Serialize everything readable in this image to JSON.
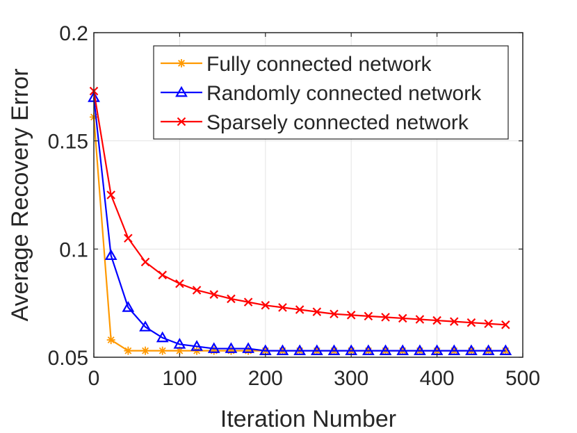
{
  "chart_data": {
    "type": "line",
    "title": "",
    "xlabel": "Iteration Number",
    "ylabel": "Average Recovery Error",
    "xlim": [
      0,
      500
    ],
    "ylim": [
      0.05,
      0.2
    ],
    "xticks": [
      0,
      100,
      200,
      300,
      400,
      500
    ],
    "yticks": [
      0.05,
      0.1,
      0.15,
      0.2
    ],
    "xtick_labels": [
      "0",
      "100",
      "200",
      "300",
      "400",
      "500"
    ],
    "ytick_labels": [
      "0.05",
      "0.1",
      "0.15",
      "0.2"
    ],
    "grid": true,
    "legend_position": "top-right",
    "x": [
      0,
      20,
      40,
      60,
      80,
      100,
      120,
      140,
      160,
      180,
      200,
      220,
      240,
      260,
      280,
      300,
      320,
      340,
      360,
      380,
      400,
      420,
      440,
      460,
      480
    ],
    "series": [
      {
        "name": "Fully connected network",
        "color": "#ff9900",
        "marker": "asterisk",
        "values": [
          0.161,
          0.058,
          0.053,
          0.053,
          0.053,
          0.053,
          0.053,
          0.053,
          0.053,
          0.053,
          0.053,
          0.053,
          0.053,
          0.053,
          0.053,
          0.053,
          0.053,
          0.053,
          0.053,
          0.053,
          0.053,
          0.053,
          0.053,
          0.053,
          0.053
        ]
      },
      {
        "name": "Randomly connected network",
        "color": "#0000ff",
        "marker": "triangle",
        "values": [
          0.17,
          0.097,
          0.073,
          0.064,
          0.059,
          0.056,
          0.055,
          0.054,
          0.054,
          0.054,
          0.053,
          0.053,
          0.053,
          0.053,
          0.053,
          0.053,
          0.053,
          0.053,
          0.053,
          0.053,
          0.053,
          0.053,
          0.053,
          0.053,
          0.053
        ]
      },
      {
        "name": "Sparsely connected network",
        "color": "#ff0000",
        "marker": "x",
        "values": [
          0.173,
          0.125,
          0.105,
          0.094,
          0.088,
          0.084,
          0.081,
          0.079,
          0.077,
          0.0755,
          0.074,
          0.073,
          0.072,
          0.071,
          0.07,
          0.0695,
          0.069,
          0.0685,
          0.068,
          0.0675,
          0.067,
          0.0665,
          0.066,
          0.0655,
          0.065
        ]
      }
    ]
  }
}
